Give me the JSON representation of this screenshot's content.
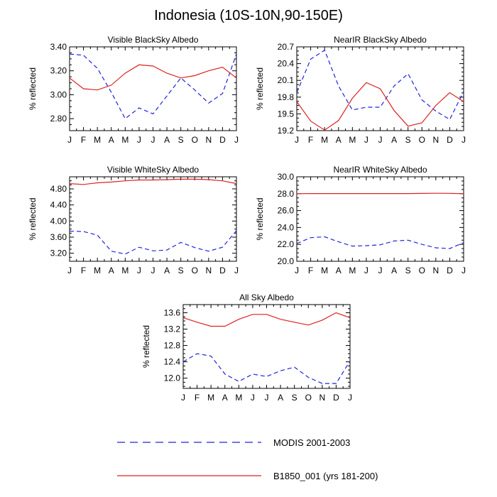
{
  "figure": {
    "title": "Indonesia (10S-10N,90-150E)",
    "colors": {
      "modis": "#2222dd",
      "model": "#dd2222",
      "axis": "#000000"
    }
  },
  "legend": {
    "items": [
      {
        "label": "MODIS 2001-2003",
        "style": "dashed",
        "color": "#2222dd"
      },
      {
        "label": "B1850_001 (yrs 181-200)",
        "style": "solid",
        "color": "#dd2222"
      }
    ]
  },
  "chart_data": [
    {
      "type": "line",
      "title": "Visible BlackSky Albedo",
      "ylabel": "% reflected",
      "xlabel": "",
      "categories": [
        "J",
        "F",
        "M",
        "A",
        "M",
        "J",
        "J",
        "A",
        "S",
        "O",
        "N",
        "D",
        "J"
      ],
      "ylim": [
        2.7,
        3.4
      ],
      "yticks": [
        2.8,
        3.0,
        3.2,
        3.4
      ],
      "ytick_labels": [
        "2.80",
        "3.00",
        "3.20",
        "3.40"
      ],
      "series": [
        {
          "name": "MODIS 2001-2003",
          "style": "dashed",
          "values": [
            3.34,
            3.33,
            3.22,
            3.02,
            2.8,
            2.89,
            2.84,
            2.99,
            3.14,
            3.04,
            2.93,
            3.01,
            3.34
          ]
        },
        {
          "name": "B1850_001 (yrs 181-200)",
          "style": "solid",
          "values": [
            3.14,
            3.05,
            3.04,
            3.08,
            3.18,
            3.25,
            3.24,
            3.18,
            3.14,
            3.16,
            3.2,
            3.23,
            3.14
          ]
        }
      ]
    },
    {
      "type": "line",
      "title": "NearIR BlackSky Albedo",
      "ylabel": "% reflected",
      "xlabel": "",
      "categories": [
        "J",
        "F",
        "M",
        "A",
        "M",
        "J",
        "J",
        "A",
        "S",
        "O",
        "N",
        "D",
        "J"
      ],
      "ylim": [
        19.2,
        20.7
      ],
      "yticks": [
        19.2,
        19.5,
        19.8,
        20.1,
        20.4,
        20.7
      ],
      "ytick_labels": [
        "19.2",
        "19.5",
        "19.8",
        "20.1",
        "20.4",
        "20.7"
      ],
      "series": [
        {
          "name": "MODIS 2001-2003",
          "style": "dashed",
          "values": [
            19.88,
            20.48,
            20.64,
            20.0,
            19.57,
            19.62,
            19.62,
            20.0,
            20.22,
            19.75,
            19.55,
            19.4,
            19.9
          ]
        },
        {
          "name": "B1850_001 (yrs 181-200)",
          "style": "solid",
          "values": [
            19.72,
            19.37,
            19.21,
            19.38,
            19.78,
            20.06,
            19.95,
            19.56,
            19.28,
            19.34,
            19.65,
            19.88,
            19.72
          ]
        }
      ]
    },
    {
      "type": "line",
      "title": "Visible WhiteSky Albedo",
      "ylabel": "% reflected",
      "xlabel": "",
      "categories": [
        "J",
        "F",
        "M",
        "A",
        "M",
        "J",
        "J",
        "A",
        "S",
        "O",
        "N",
        "D",
        "J"
      ],
      "ylim": [
        3.0,
        5.1
      ],
      "yticks": [
        3.2,
        3.6,
        4.0,
        4.4,
        4.8
      ],
      "ytick_labels": [
        "3.20",
        "3.60",
        "4.00",
        "4.40",
        "4.80"
      ],
      "series": [
        {
          "name": "MODIS 2001-2003",
          "style": "dashed",
          "values": [
            3.75,
            3.74,
            3.65,
            3.25,
            3.18,
            3.35,
            3.26,
            3.28,
            3.47,
            3.34,
            3.25,
            3.35,
            3.76
          ]
        },
        {
          "name": "B1850_001 (yrs 181-200)",
          "style": "solid",
          "values": [
            4.93,
            4.91,
            4.95,
            4.97,
            5.0,
            5.02,
            5.02,
            5.03,
            5.04,
            5.04,
            5.03,
            5.0,
            4.93
          ]
        }
      ]
    },
    {
      "type": "line",
      "title": "NearIR WhiteSky Albedo",
      "ylabel": "% reflected",
      "xlabel": "",
      "categories": [
        "J",
        "F",
        "M",
        "A",
        "M",
        "J",
        "J",
        "A",
        "S",
        "O",
        "N",
        "D",
        "J"
      ],
      "ylim": [
        20.0,
        30.0
      ],
      "yticks": [
        20.0,
        22.0,
        24.0,
        26.0,
        28.0,
        30.0
      ],
      "ytick_labels": [
        "20.0",
        "22.0",
        "24.0",
        "26.0",
        "28.0",
        "30.0"
      ],
      "series": [
        {
          "name": "MODIS 2001-2003",
          "style": "dashed",
          "values": [
            22.1,
            22.8,
            22.9,
            22.3,
            21.8,
            21.85,
            21.95,
            22.4,
            22.5,
            22.0,
            21.6,
            21.5,
            22.2
          ]
        },
        {
          "name": "B1850_001 (yrs 181-200)",
          "style": "solid",
          "values": [
            28.0,
            28.02,
            28.02,
            28.02,
            28.02,
            28.02,
            28.02,
            28.02,
            28.02,
            28.03,
            28.05,
            28.04,
            28.0
          ]
        }
      ]
    },
    {
      "type": "line",
      "title": "All Sky Albedo",
      "ylabel": "% reflected",
      "xlabel": "",
      "categories": [
        "J",
        "F",
        "M",
        "A",
        "M",
        "J",
        "J",
        "A",
        "S",
        "O",
        "N",
        "D",
        "J"
      ],
      "ylim": [
        11.75,
        13.8
      ],
      "yticks": [
        12.0,
        12.4,
        12.8,
        13.2,
        13.6
      ],
      "ytick_labels": [
        "12.0",
        "12.4",
        "12.8",
        "13.2",
        "13.6"
      ],
      "series": [
        {
          "name": "MODIS 2001-2003",
          "style": "dashed",
          "values": [
            12.4,
            12.6,
            12.54,
            12.1,
            11.92,
            12.1,
            12.04,
            12.18,
            12.27,
            12.02,
            11.87,
            11.87,
            12.42
          ]
        },
        {
          "name": "B1850_001 (yrs 181-200)",
          "style": "solid",
          "values": [
            13.48,
            13.37,
            13.27,
            13.27,
            13.44,
            13.56,
            13.56,
            13.44,
            13.37,
            13.3,
            13.42,
            13.6,
            13.48
          ]
        }
      ]
    }
  ]
}
